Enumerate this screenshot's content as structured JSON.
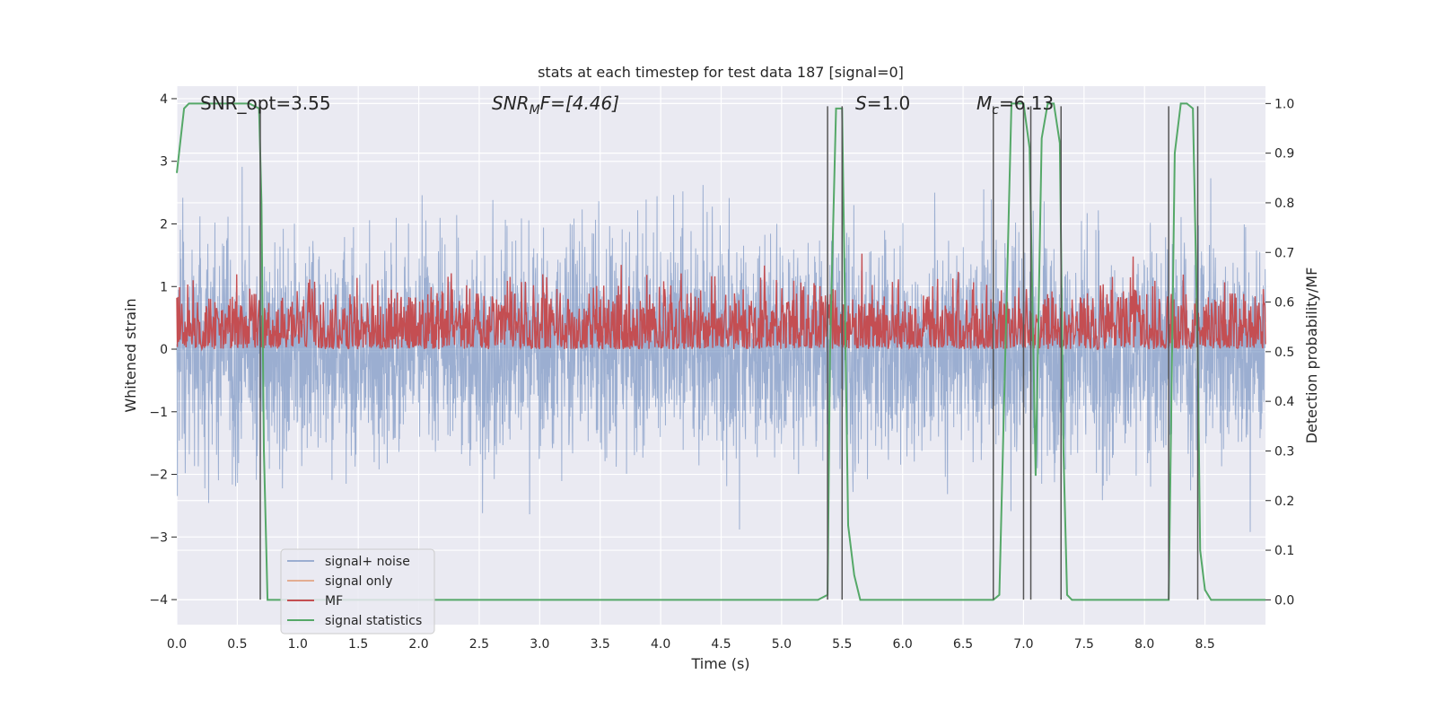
{
  "chart_data": {
    "type": "line",
    "title": "stats at each timestep for test data 187 [signal=0]",
    "xlabel": "Time (s)",
    "ylabel": "Whitened strain",
    "y2label": "Detection probability/MF",
    "xlim": [
      0.0,
      9.0
    ],
    "ylim": [
      -4.4,
      4.2
    ],
    "y2lim": [
      -0.05,
      1.035
    ],
    "x_ticks": [
      "0.0",
      "0.5",
      "1.0",
      "1.5",
      "2.0",
      "2.5",
      "3.0",
      "3.5",
      "4.0",
      "4.5",
      "5.0",
      "5.5",
      "6.0",
      "6.5",
      "7.0",
      "7.5",
      "8.0",
      "8.5"
    ],
    "y_ticks": [
      "4",
      "3",
      "2",
      "1",
      "0",
      "−1",
      "−2",
      "−3",
      "−4"
    ],
    "y2_ticks": [
      "1.0",
      "0.9",
      "0.8",
      "0.7",
      "0.6",
      "0.5",
      "0.4",
      "0.3",
      "0.2",
      "0.1",
      "0.0"
    ],
    "annotations": {
      "snr_opt": "SNR_opt=3.55",
      "snr_mf_base": "SNR",
      "snr_mf_sub": "M",
      "snr_mf_rest": "F=[4.46]",
      "s_base": "S",
      "s_rest": "=1.0",
      "mc_base": "M",
      "mc_sub": "c",
      "mc_rest": "=6.13"
    },
    "legend": {
      "location": "lower-left",
      "entries": [
        {
          "label": "signal+ noise",
          "color": "#4c72b0"
        },
        {
          "label": "signal only",
          "color": "#dd8452"
        },
        {
          "label": "MF",
          "color": "#c44e52"
        },
        {
          "label": "signal statistics",
          "color": "#55a868"
        }
      ]
    },
    "series": [
      {
        "name": "signal statistics",
        "axis": "right",
        "color": "#55a868",
        "x": [
          0.0,
          0.06,
          0.1,
          0.2,
          0.3,
          0.4,
          0.5,
          0.6,
          0.68,
          0.7,
          0.72,
          0.75,
          0.8,
          1.0,
          2.0,
          3.0,
          4.0,
          5.0,
          5.3,
          5.38,
          5.4,
          5.45,
          5.5,
          5.55,
          5.6,
          5.65,
          6.0,
          6.5,
          6.75,
          6.8,
          6.9,
          7.0,
          7.05,
          7.1,
          7.15,
          7.2,
          7.25,
          7.3,
          7.33,
          7.36,
          7.4,
          7.5,
          7.7,
          8.0,
          8.2,
          8.25,
          8.3,
          8.35,
          8.4,
          8.44,
          8.46,
          8.5,
          8.55,
          8.6,
          8.8,
          9.0
        ],
        "y": [
          0.86,
          0.99,
          1.0,
          1.0,
          1.0,
          1.0,
          1.0,
          1.0,
          0.99,
          0.8,
          0.3,
          0.0,
          0.0,
          0.0,
          0.0,
          0.0,
          0.0,
          0.0,
          0.0,
          0.01,
          0.5,
          0.99,
          0.99,
          0.15,
          0.05,
          0.0,
          0.0,
          0.0,
          0.0,
          0.01,
          1.0,
          1.0,
          0.91,
          0.25,
          0.93,
          1.0,
          1.0,
          0.92,
          0.3,
          0.01,
          0.0,
          0.0,
          0.0,
          0.0,
          0.0,
          0.9,
          1.0,
          1.0,
          0.99,
          0.5,
          0.1,
          0.02,
          0.0,
          0.0,
          0.0,
          0.0
        ]
      }
    ],
    "noise_series": {
      "name": "signal+ noise",
      "color": "#4c72b0",
      "axis": "left",
      "samples": 4000,
      "sigma": 0.85,
      "seed": 187
    },
    "mf_series": {
      "name": "MF",
      "color": "#c44e52",
      "axis": "right",
      "mean": 0.545,
      "spread": 0.045,
      "samples": 2000,
      "seed": 42
    },
    "vertical_markers": [
      0.69,
      5.38,
      5.5,
      6.75,
      7.0,
      7.06,
      7.31,
      8.2,
      8.44
    ]
  }
}
